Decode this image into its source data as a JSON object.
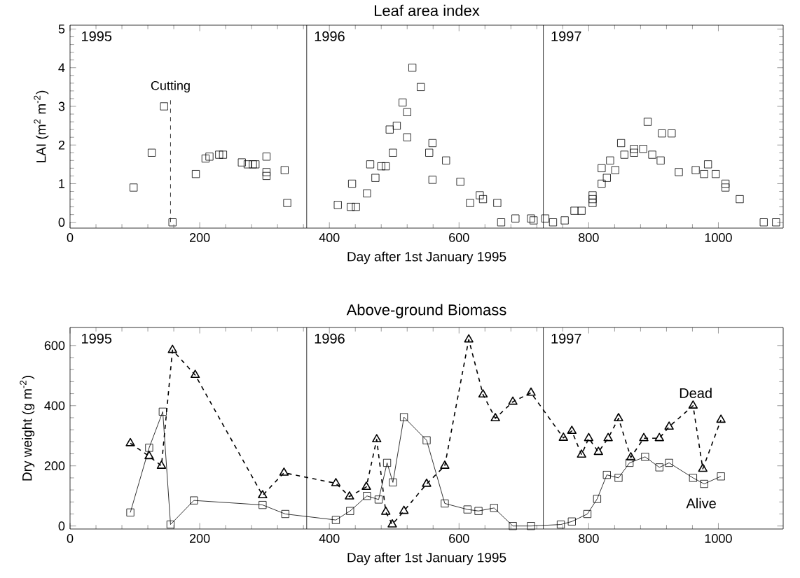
{
  "chart_data": [
    {
      "type": "scatter",
      "title": "Leaf area index",
      "xlabel": "Day after 1st January 1995",
      "ylabel": "LAI (m$^{2}$ m$^{-2}$)",
      "color": "#000000",
      "marker": "square",
      "x": [
        98,
        126,
        145,
        158,
        194,
        209,
        215,
        230,
        236,
        265,
        274,
        282,
        286,
        303,
        303,
        303,
        331,
        335,
        413,
        435,
        433,
        441,
        458,
        463,
        471,
        480,
        487,
        498,
        493,
        504,
        520,
        513,
        520,
        528,
        541,
        559,
        554,
        580,
        559,
        602,
        617,
        632,
        637,
        659,
        665,
        687,
        711,
        715,
        733,
        745,
        763,
        778,
        789,
        806,
        806,
        806,
        820,
        820,
        828,
        833,
        841,
        850,
        855,
        870,
        870,
        884,
        891,
        898,
        911,
        913,
        928,
        939,
        965,
        978,
        984,
        996,
        1011,
        1011,
        1033,
        1070,
        1089
      ],
      "values": [
        0.9,
        1.8,
        3.0,
        0,
        1.25,
        1.65,
        1.7,
        1.75,
        1.75,
        1.55,
        1.5,
        1.5,
        1.5,
        1.7,
        1.3,
        1.2,
        1.35,
        0.5,
        0.45,
        1.0,
        0.4,
        0.4,
        0.75,
        1.5,
        1.15,
        1.45,
        1.45,
        1.8,
        2.4,
        2.5,
        2.2,
        3.1,
        2.85,
        4.0,
        3.5,
        2.05,
        1.8,
        1.6,
        1.1,
        1.05,
        0.5,
        0.7,
        0.6,
        0.5,
        0,
        0.1,
        0.1,
        0.05,
        0.1,
        0,
        0.05,
        0.3,
        0.3,
        0.5,
        0.6,
        0.7,
        1.0,
        1.4,
        1.15,
        1.6,
        1.35,
        2.05,
        1.75,
        1.9,
        1.8,
        1.9,
        2.6,
        1.75,
        1.6,
        2.3,
        2.3,
        1.3,
        1.35,
        1.25,
        1.5,
        1.25,
        1.0,
        0.9,
        0.6,
        0,
        0
      ],
      "xlim": [
        0,
        1100
      ],
      "xticks": [
        0,
        200,
        400,
        600,
        800,
        1000
      ],
      "ylim": [
        -0.15,
        5.1
      ],
      "yticks": [
        0,
        1,
        2,
        3,
        4,
        5
      ],
      "ref_lines": [
        {
          "axis": "x",
          "value": 365
        },
        {
          "axis": "x",
          "value": 730
        },
        {
          "axis": "x",
          "value": 155,
          "label": "Cutting",
          "line_style": "dashed"
        }
      ],
      "annotations": [
        "1995",
        "1996",
        "1997"
      ]
    },
    {
      "type": "line",
      "title": "Above-ground Biomass",
      "xlabel": "Day after 1st January 1995",
      "ylabel": "Dry weight (g m$^{-2}$)",
      "series": [
        {
          "name": "Alive",
          "color": "#000000",
          "marker": "square",
          "line_style": "solid",
          "x": [
            93,
            122,
            143,
            155,
            191,
            297,
            332,
            410,
            432,
            458,
            476,
            489,
            498,
            515,
            550,
            578,
            613,
            630,
            654,
            683,
            711,
            757,
            774,
            798,
            813,
            828,
            846,
            863,
            887,
            909,
            924,
            961,
            978,
            1004
          ],
          "values": [
            45,
            260,
            380,
            5,
            85,
            70,
            40,
            20,
            50,
            100,
            88,
            210,
            145,
            362,
            285,
            75,
            55,
            50,
            60,
            0,
            0,
            5,
            15,
            40,
            90,
            170,
            160,
            210,
            230,
            195,
            210,
            160,
            140,
            165
          ]
        },
        {
          "name": "Dead",
          "color": "#000000",
          "marker": "triangle",
          "line_style": "dashed",
          "x": [
            93,
            122,
            141,
            158,
            193,
            297,
            330,
            410,
            431,
            457,
            473,
            487,
            497,
            515,
            550,
            578,
            615,
            637,
            656,
            683,
            711,
            761,
            774,
            789,
            800,
            815,
            830,
            846,
            865,
            885,
            909,
            924,
            961,
            976,
            1004
          ],
          "values": [
            275,
            232,
            200,
            585,
            502,
            102,
            177,
            142,
            98,
            130,
            288,
            47,
            5,
            50,
            140,
            200,
            620,
            437,
            358,
            413,
            443,
            293,
            316,
            237,
            292,
            246,
            292,
            358,
            228,
            292,
            292,
            330,
            400,
            190,
            353
          ]
        }
      ],
      "xlim": [
        0,
        1100
      ],
      "xticks": [
        0,
        200,
        400,
        600,
        800,
        1000
      ],
      "ylim": [
        -10,
        660
      ],
      "yticks": [
        0,
        200,
        400,
        600
      ],
      "ref_lines": [
        {
          "axis": "x",
          "value": 365
        },
        {
          "axis": "x",
          "value": 730
        }
      ],
      "annotations": [
        "1995",
        "1996",
        "1997"
      ]
    }
  ]
}
